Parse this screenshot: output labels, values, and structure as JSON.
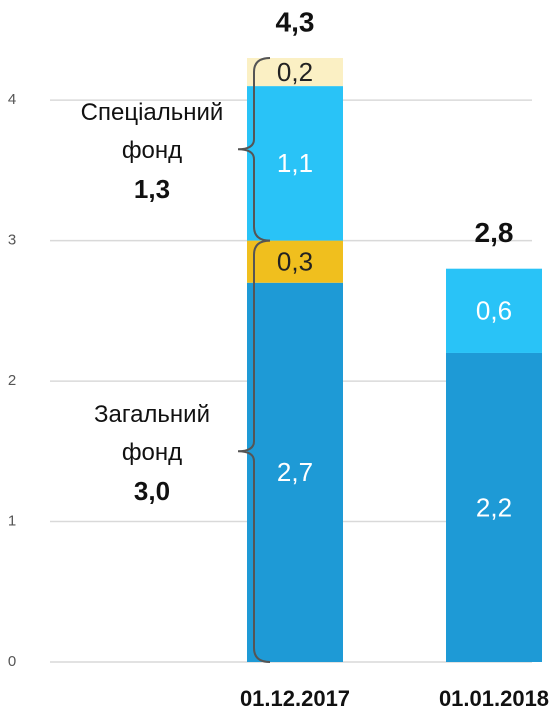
{
  "chart_data": {
    "type": "stacked_bar",
    "categories": [
      "01.12.2017",
      "01.01.2018"
    ],
    "series": [
      {
        "color": "#1e9ad6",
        "label_color": "#ffffff",
        "values": [
          2.7,
          2.2
        ],
        "value_labels": [
          "2,7",
          "2,2"
        ]
      },
      {
        "color": "#f0bf1e",
        "label_color": "#222222",
        "values": [
          0.3,
          null
        ],
        "value_labels": [
          "0,3",
          null
        ]
      },
      {
        "color": "#29c3f7",
        "label_color": "#ffffff",
        "values": [
          1.1,
          0.6
        ],
        "value_labels": [
          "1,1",
          "0,6"
        ]
      },
      {
        "color": "#fbf0c4",
        "label_color": "#222222",
        "values": [
          0.2,
          null
        ],
        "value_labels": [
          "0,2",
          null
        ]
      }
    ],
    "totals": {
      "values": [
        4.3,
        2.8
      ],
      "value_labels": [
        "4,3",
        "2,8"
      ]
    },
    "annotations": [
      {
        "text": "Загальний фонд",
        "value": 3.0,
        "value_label": "3,0"
      },
      {
        "text": "Спеціальний фонд",
        "value": 1.3,
        "value_label": "1,3"
      }
    ],
    "ylim": [
      0,
      4.3
    ],
    "yticks": [
      0,
      1,
      2,
      3,
      4
    ],
    "grid": true
  }
}
